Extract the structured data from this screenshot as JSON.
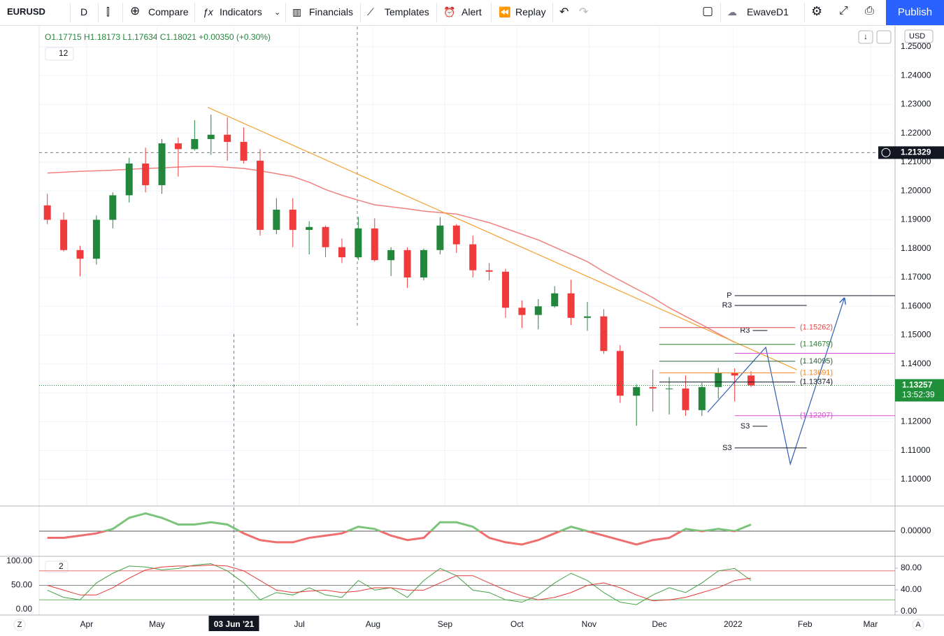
{
  "toolbar": {
    "symbol": "EURUSD",
    "interval": "D",
    "buttons": [
      "Compare",
      "Indicators",
      "Financials",
      "Templates",
      "Alert",
      "Replay"
    ],
    "layout": "EwaveD1",
    "publish": "Publish"
  },
  "legend": {
    "ohlc": "O1.17715 H1.18173 L1.17634 C1.18021 +0.00350 (+0.30%)",
    "indicators": "12",
    "oscillator_badge": "2"
  },
  "currency": "USD",
  "corner_letters": [
    "Z",
    "A"
  ],
  "chart_data": [
    {
      "type": "candlestick",
      "xlim": [
        -0.5,
        51.8
      ],
      "xticks": [
        {
          "value": 2.4,
          "label": "Apr"
        },
        {
          "value": 6.7,
          "label": "May"
        },
        {
          "value": 11.4,
          "label": "03 Jun '21"
        },
        {
          "value": 15.4,
          "label": "Jul"
        },
        {
          "value": 19.9,
          "label": "Aug"
        },
        {
          "value": 24.3,
          "label": "Sep"
        },
        {
          "value": 28.7,
          "label": "Oct"
        },
        {
          "value": 33.1,
          "label": "Nov"
        },
        {
          "value": 37.4,
          "label": "Dec"
        },
        {
          "value": 41.9,
          "label": "2022"
        },
        {
          "value": 46.3,
          "label": "Feb"
        },
        {
          "value": 50.3,
          "label": "Mar"
        }
      ],
      "ylim": [
        1.091,
        1.257
      ],
      "yticks": [
        {
          "value": 1.1,
          "label": "1.10000"
        },
        {
          "value": 1.11,
          "label": "1.11000"
        },
        {
          "value": 1.12,
          "label": "1.12000"
        },
        {
          "value": 1.13,
          "label": "1.13000"
        },
        {
          "value": 1.14,
          "label": "1.14000"
        },
        {
          "value": 1.15,
          "label": "1.15000"
        },
        {
          "value": 1.16,
          "label": "1.16000"
        },
        {
          "value": 1.17,
          "label": "1.17000"
        },
        {
          "value": 1.18,
          "label": "1.18000"
        },
        {
          "value": 1.19,
          "label": "1.19000"
        },
        {
          "value": 1.2,
          "label": "1.20000"
        },
        {
          "value": 1.21,
          "label": "1.21000"
        },
        {
          "value": 1.22,
          "label": "1.22000"
        },
        {
          "value": 1.23,
          "label": "1.23000"
        },
        {
          "value": 1.24,
          "label": "1.24000"
        },
        {
          "value": 1.25,
          "label": "1.25000"
        }
      ],
      "grid": true,
      "up_color": "#22873b",
      "down_color": "#ef3b3b",
      "open": [
        1.195,
        1.19,
        1.1795,
        1.1765,
        1.19,
        1.1985,
        1.2095,
        1.202,
        1.2165,
        1.2145,
        1.218,
        1.2195,
        1.217,
        1.2105,
        1.1865,
        1.1935,
        1.1865,
        1.1875,
        1.1805,
        1.177,
        1.187,
        1.176,
        1.1795,
        1.17,
        1.1795,
        1.188,
        1.1815,
        1.1725,
        1.172,
        1.1595,
        1.157,
        1.16,
        1.1645,
        1.156,
        1.1565,
        1.1445,
        1.129,
        1.132,
        1.1315,
        1.1315,
        1.124,
        1.132,
        1.137,
        1.136
      ],
      "high": [
        1.199,
        1.1925,
        1.181,
        1.1915,
        1.1995,
        1.2115,
        1.215,
        1.218,
        1.2185,
        1.2245,
        1.2265,
        1.2255,
        1.222,
        1.2145,
        1.1975,
        1.1975,
        1.1895,
        1.188,
        1.1835,
        1.191,
        1.1905,
        1.1805,
        1.1805,
        1.18,
        1.1909,
        1.1885,
        1.1845,
        1.175,
        1.173,
        1.162,
        1.1625,
        1.167,
        1.1692,
        1.1615,
        1.159,
        1.1465,
        1.133,
        1.138,
        1.1355,
        1.136,
        1.1335,
        1.1386,
        1.1385,
        1.1375
      ],
      "low": [
        1.1885,
        1.179,
        1.1704,
        1.1745,
        1.187,
        1.196,
        1.1995,
        1.199,
        1.205,
        1.214,
        1.2125,
        1.2105,
        1.2095,
        1.1845,
        1.185,
        1.1805,
        1.178,
        1.177,
        1.175,
        1.176,
        1.1755,
        1.1705,
        1.1664,
        1.169,
        1.178,
        1.1785,
        1.17,
        1.169,
        1.156,
        1.1525,
        1.152,
        1.1595,
        1.1535,
        1.1515,
        1.1435,
        1.1265,
        1.1186,
        1.1235,
        1.1225,
        1.122,
        1.122,
        1.128,
        1.127,
        1.132
      ],
      "close": [
        1.19,
        1.1795,
        1.1765,
        1.19,
        1.1985,
        1.2095,
        1.202,
        1.2165,
        1.2145,
        1.218,
        1.2195,
        1.217,
        1.2105,
        1.1865,
        1.1935,
        1.1865,
        1.1875,
        1.1805,
        1.177,
        1.187,
        1.176,
        1.1795,
        1.17,
        1.1795,
        1.188,
        1.1815,
        1.1725,
        1.172,
        1.1595,
        1.157,
        1.16,
        1.1645,
        1.156,
        1.1565,
        1.1445,
        1.129,
        1.132,
        1.1315,
        1.1315,
        1.124,
        1.132,
        1.137,
        1.136,
        1.13257
      ],
      "moving_average": {
        "color": "#f08080",
        "values": [
          1.2062,
          1.2065,
          1.2068,
          1.207,
          1.2072,
          1.2075,
          1.2078,
          1.208,
          1.2083,
          1.2085,
          1.2085,
          1.2082,
          1.2078,
          1.207,
          1.206,
          1.205,
          1.203,
          1.2005,
          1.1985,
          1.1968,
          1.1952,
          1.1945,
          1.1938,
          1.193,
          1.1925,
          1.192,
          1.1905,
          1.189,
          1.187,
          1.185,
          1.183,
          1.1805,
          1.178,
          1.1755,
          1.172,
          1.169,
          1.166,
          1.163,
          1.1595,
          1.1565,
          1.1536,
          1.1505,
          1.1475,
          null
        ]
      },
      "trendline": {
        "color": "#f5a030",
        "x": [
          9.8,
          45.8
        ],
        "values": [
          1.229,
          1.138
        ]
      },
      "projection": {
        "color": "#2f5fb3",
        "x": [
          40.35,
          43.9,
          45.4,
          48.7
        ],
        "values": [
          1.1233,
          1.1458,
          1.1053,
          1.1628
        ]
      },
      "levels": [
        {
          "label": "P",
          "value": 1.1637,
          "color": "#131722",
          "x": [
            42.0,
            51.8
          ]
        },
        {
          "label": "R3",
          "value": 1.1603,
          "color": "#131722",
          "x": [
            42.0,
            46.4
          ]
        },
        {
          "label": "R3",
          "value": 1.1516,
          "color": "#131722",
          "x": [
            43.1,
            44.0
          ]
        },
        {
          "label": "(1.15262)",
          "value": 1.15262,
          "color": "#e04848",
          "x": [
            37.4,
            45.7
          ]
        },
        {
          "label": "(1.14679)",
          "value": 1.14679,
          "color": "#2e7d32",
          "x": [
            37.4,
            45.7
          ]
        },
        {
          "label": "(1.14095)",
          "value": 1.14095,
          "color": "#2e5e3e",
          "x": [
            37.4,
            45.7
          ]
        },
        {
          "label": "(1.13691)",
          "value": 1.13691,
          "color": "#f0892a",
          "x": [
            37.4,
            45.7
          ]
        },
        {
          "label": "(1.13374)",
          "value": 1.13374,
          "color": "#131722",
          "x": [
            37.4,
            45.7
          ]
        },
        {
          "value": 1.1437,
          "color": "#d64fd6",
          "x": [
            42.0,
            51.8
          ]
        },
        {
          "label": "(1.12207)",
          "value": 1.12207,
          "color": "#d64fd6",
          "x": [
            42.0,
            51.8
          ]
        },
        {
          "label": "S3",
          "value": 1.1184,
          "color": "#131722",
          "x": [
            43.1,
            44.0
          ]
        },
        {
          "label": "S3",
          "value": 1.1109,
          "color": "#131722",
          "x": [
            42.0,
            46.4
          ]
        }
      ],
      "crosshair_price": 1.21329,
      "last_price": 1.13257,
      "countdown": "13:52:39"
    },
    {
      "type": "line",
      "ylim": [
        -0.011,
        0.011
      ],
      "yticks": [
        {
          "value": 0,
          "label": "0.00000"
        }
      ],
      "up_color": "#7cc47c",
      "down_color": "#ef6e6e",
      "values": [
        -0.003,
        -0.003,
        -0.002,
        -0.001,
        0.001,
        0.006,
        0.008,
        0.006,
        0.003,
        0.003,
        0.004,
        0.003,
        -0.001,
        -0.004,
        -0.005,
        -0.005,
        -0.003,
        -0.002,
        -0.001,
        0.002,
        0.001,
        -0.002,
        -0.004,
        -0.003,
        0.004,
        0.004,
        0.002,
        -0.003,
        -0.005,
        -0.006,
        -0.004,
        -0.001,
        0.002,
        0.0,
        -0.002,
        -0.004,
        -0.006,
        -0.004,
        -0.003,
        0.001,
        0.0,
        0.001,
        0.0,
        0.003
      ]
    },
    {
      "type": "line",
      "ylim": [
        -11.6,
        108.7
      ],
      "yticks": [
        {
          "value": 100,
          "label": "100.00"
        },
        {
          "value": 50,
          "label": "50.00"
        },
        {
          "value": 0,
          "label": "0.00"
        }
      ],
      "y2lim": [
        -6.5,
        100.6
      ],
      "y2ticks": [
        {
          "value": 80,
          "label": "80.00"
        },
        {
          "value": 40,
          "label": "40.00"
        },
        {
          "value": 0,
          "label": "0.00"
        }
      ],
      "levels": [
        {
          "value": 80,
          "color": "#e57373"
        },
        {
          "value": 50,
          "color": "#888888"
        },
        {
          "value": 20,
          "color": "#66bb6a"
        }
      ],
      "series": [
        {
          "color": "#43a047",
          "values": [
            40,
            25,
            20,
            55,
            75,
            90,
            88,
            82,
            85,
            92,
            95,
            80,
            55,
            20,
            35,
            30,
            45,
            30,
            25,
            60,
            40,
            45,
            25,
            60,
            85,
            70,
            40,
            35,
            20,
            15,
            30,
            55,
            75,
            60,
            35,
            15,
            10,
            30,
            45,
            35,
            55,
            80,
            85,
            60
          ]
        },
        {
          "color": "#e53935",
          "values": [
            50,
            40,
            30,
            30,
            45,
            65,
            82,
            88,
            90,
            90,
            92,
            90,
            80,
            60,
            40,
            35,
            38,
            40,
            35,
            38,
            45,
            45,
            40,
            40,
            55,
            70,
            70,
            55,
            40,
            28,
            20,
            25,
            35,
            50,
            55,
            45,
            30,
            18,
            20,
            25,
            35,
            45,
            60,
            65
          ]
        }
      ]
    }
  ]
}
